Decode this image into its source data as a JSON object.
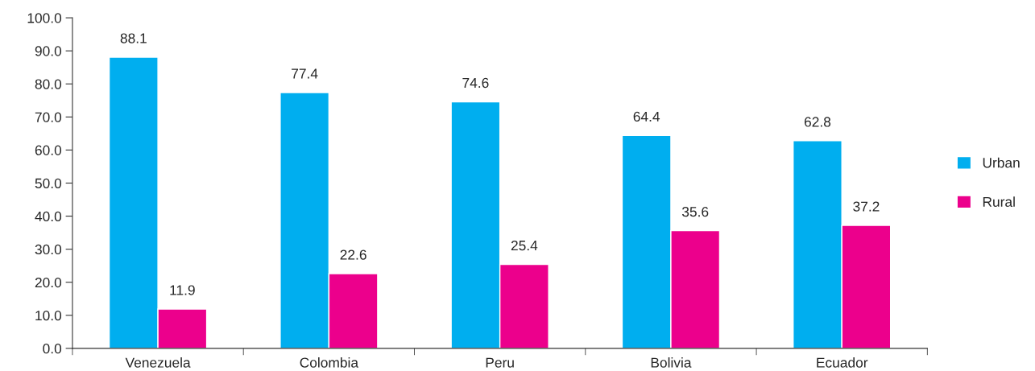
{
  "chart_data": {
    "type": "bar",
    "categories": [
      "Venezuela",
      "Colombia",
      "Peru",
      "Bolivia",
      "Ecuador"
    ],
    "series": [
      {
        "name": "Urban",
        "color": "#00aeef",
        "values": [
          88.1,
          77.4,
          74.6,
          64.4,
          62.8
        ]
      },
      {
        "name": "Rural",
        "color": "#ec008c",
        "values": [
          11.9,
          22.6,
          25.4,
          35.6,
          37.2
        ]
      }
    ],
    "ylim": [
      0,
      100
    ],
    "yticks": [
      {
        "value": 0,
        "label": "0.0"
      },
      {
        "value": 10,
        "label": "10.0"
      },
      {
        "value": 20,
        "label": "20.0"
      },
      {
        "value": 30,
        "label": "30.0"
      },
      {
        "value": 40,
        "label": "40.0"
      },
      {
        "value": 50,
        "label": "50.0"
      },
      {
        "value": 60,
        "label": "60.0"
      },
      {
        "value": 70,
        "label": "70.0"
      },
      {
        "value": 80,
        "label": "80.0"
      },
      {
        "value": 90,
        "label": "90.0"
      },
      {
        "value": 100,
        "label": "100.0"
      }
    ],
    "data_labels": true,
    "grid": false,
    "legend": "right"
  }
}
